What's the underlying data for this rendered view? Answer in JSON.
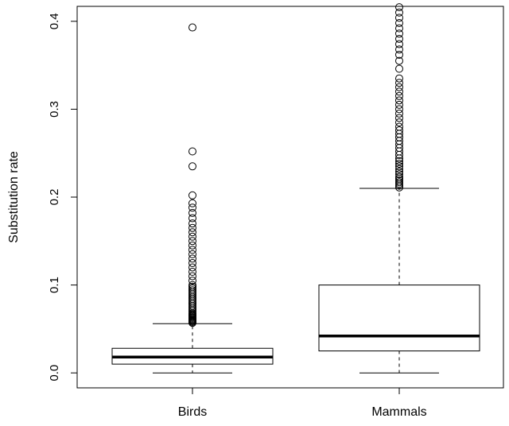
{
  "chart_data": {
    "type": "box",
    "ylabel": "Substitution rate",
    "xlabel": "",
    "title": "",
    "ylim": [
      -0.017,
      0.417
    ],
    "yticks": [
      0.0,
      0.1,
      0.2,
      0.3,
      0.4
    ],
    "ytick_labels": [
      "0.0",
      "0.1",
      "0.2",
      "0.3",
      "0.4"
    ],
    "grid": false,
    "categories": [
      "Birds",
      "Mammals"
    ],
    "boxes": [
      {
        "name": "Birds",
        "whisker_low": 0.0,
        "q1": 0.01,
        "median": 0.018,
        "q3": 0.028,
        "whisker_high": 0.056,
        "outliers": [
          0.057,
          0.058,
          0.059,
          0.06,
          0.061,
          0.062,
          0.063,
          0.064,
          0.065,
          0.066,
          0.067,
          0.068,
          0.07,
          0.072,
          0.074,
          0.076,
          0.078,
          0.08,
          0.082,
          0.084,
          0.086,
          0.088,
          0.09,
          0.092,
          0.094,
          0.096,
          0.098,
          0.1,
          0.105,
          0.11,
          0.115,
          0.12,
          0.125,
          0.13,
          0.135,
          0.14,
          0.145,
          0.15,
          0.155,
          0.16,
          0.165,
          0.17,
          0.176,
          0.182,
          0.188,
          0.193,
          0.202,
          0.235,
          0.252,
          0.393
        ]
      },
      {
        "name": "Mammals",
        "whisker_low": 0.0,
        "q1": 0.025,
        "median": 0.042,
        "q3": 0.1,
        "whisker_high": 0.21,
        "outliers": [
          0.211,
          0.213,
          0.215,
          0.217,
          0.219,
          0.221,
          0.223,
          0.226,
          0.229,
          0.232,
          0.235,
          0.238,
          0.241,
          0.244,
          0.248,
          0.252,
          0.256,
          0.26,
          0.264,
          0.268,
          0.272,
          0.276,
          0.28,
          0.285,
          0.29,
          0.295,
          0.3,
          0.305,
          0.31,
          0.315,
          0.32,
          0.325,
          0.33,
          0.335,
          0.346,
          0.355,
          0.362,
          0.368,
          0.374,
          0.38,
          0.386,
          0.392,
          0.398,
          0.404,
          0.41,
          0.416
        ]
      }
    ]
  }
}
